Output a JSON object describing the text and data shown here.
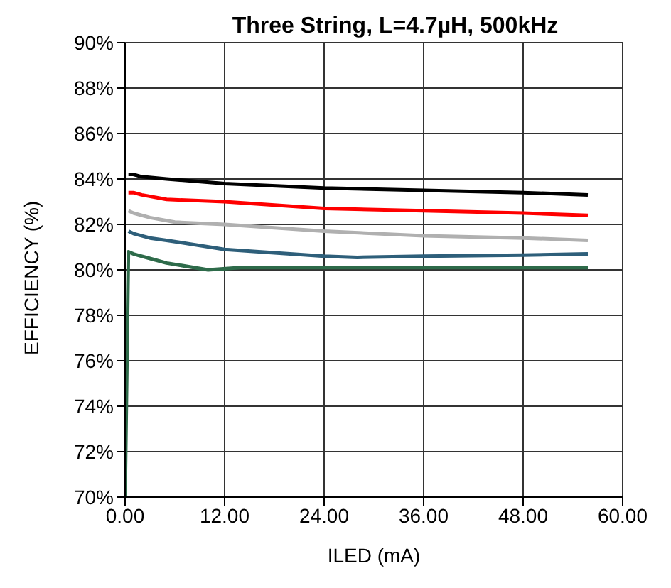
{
  "chart_data": {
    "type": "line",
    "title": "Three String, L=4.7µH, 500kHz",
    "xlabel": "ILED (mA)",
    "ylabel": "EFFICIENCY (%)",
    "xlim": [
      0,
      60
    ],
    "xticks": [
      {
        "value": 0,
        "label": "0.00"
      },
      {
        "value": 12,
        "label": "12.00"
      },
      {
        "value": 24,
        "label": "24.00"
      },
      {
        "value": 36,
        "label": "36.00"
      },
      {
        "value": 48,
        "label": "48.00"
      },
      {
        "value": 60,
        "label": "60.00"
      }
    ],
    "ylim": [
      70,
      90
    ],
    "yticks": [
      {
        "value": 70,
        "label": "70%"
      },
      {
        "value": 72,
        "label": "72%"
      },
      {
        "value": 74,
        "label": "74%"
      },
      {
        "value": 76,
        "label": "76%"
      },
      {
        "value": 78,
        "label": "78%"
      },
      {
        "value": 80,
        "label": "80%"
      },
      {
        "value": 82,
        "label": "82%"
      },
      {
        "value": 84,
        "label": "84%"
      },
      {
        "value": 86,
        "label": "86%"
      },
      {
        "value": 88,
        "label": "88%"
      },
      {
        "value": 90,
        "label": "90%"
      }
    ],
    "grid": true,
    "marker": "none",
    "line_style": "solid",
    "series": [
      {
        "color": "#000000",
        "x": [
          0.4,
          1,
          2,
          5,
          12,
          24,
          36,
          48,
          55.8
        ],
        "values": [
          84.2,
          84.2,
          84.1,
          84.0,
          83.8,
          83.6,
          83.5,
          83.4,
          83.3
        ]
      },
      {
        "color": "#ff0000",
        "x": [
          0.4,
          1,
          2,
          5,
          12,
          24,
          36,
          48,
          55.8
        ],
        "values": [
          83.4,
          83.4,
          83.3,
          83.1,
          83.0,
          82.7,
          82.6,
          82.5,
          82.4
        ]
      },
      {
        "color": "#b0b0b0",
        "x": [
          0.4,
          1,
          3,
          6,
          12,
          24,
          36,
          48,
          55.8
        ],
        "values": [
          82.6,
          82.5,
          82.3,
          82.1,
          82.0,
          81.7,
          81.5,
          81.4,
          81.3
        ]
      },
      {
        "color": "#2e5f7a",
        "x": [
          0.4,
          1,
          3,
          5,
          12,
          24,
          28,
          36,
          48,
          55.8
        ],
        "values": [
          81.7,
          81.6,
          81.4,
          81.3,
          80.9,
          80.6,
          80.55,
          80.6,
          80.65,
          80.7
        ]
      },
      {
        "color": "#2e6b4a",
        "x": [
          0,
          0.4,
          1,
          3,
          5,
          10,
          14,
          24,
          36,
          48,
          55.8
        ],
        "values": [
          70,
          80.8,
          80.7,
          80.5,
          80.3,
          80.0,
          80.1,
          80.1,
          80.1,
          80.1,
          80.1
        ]
      }
    ]
  }
}
